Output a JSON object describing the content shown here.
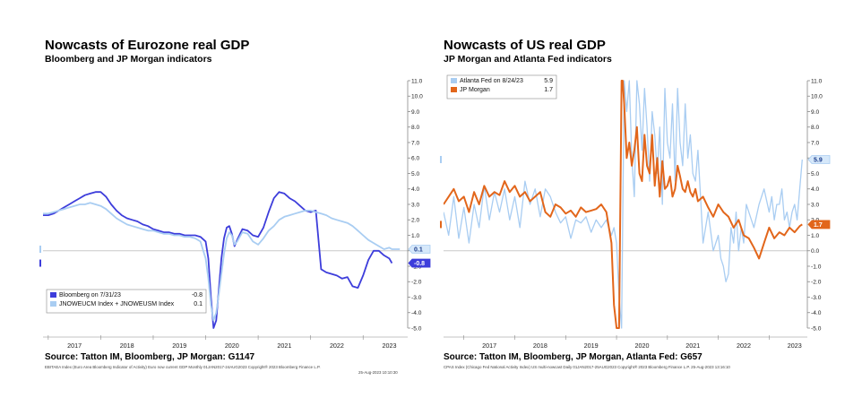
{
  "colors": {
    "eu_series_1": "#3d3ddb",
    "eu_series_2": "#a9cdf2",
    "us_series_1": "#a9cdf2",
    "us_series_2": "#e2661b",
    "axis": "#888888",
    "zero_line": "#c8c8c8"
  },
  "chart_data": [
    {
      "type": "line",
      "title": "Nowcasts of Eurozone real GDP",
      "subtitle": "Bloomberg and JP Morgan indicators",
      "source": "Source: Tatton IM, Bloomberg, JP Morgan: G1147",
      "footnote_1": "EBITAEA Index (Euro Area Bloomberg Indicator of Activity) Euro now current GDP  Monthly 01JAN2017-24AUG2023  Copyright® 2023 Bloomberg Finance L.P.",
      "footnote_2": "25-Aug-2023 10:10:30",
      "ylim": [
        -5.0,
        11.0
      ],
      "yticks": [
        "11.0",
        "10.0",
        "9.0",
        "8.0",
        "7.0",
        "6.0",
        "5.0",
        "4.0",
        "3.0",
        "2.0",
        "1.0",
        "0.0",
        "-1.0",
        "-2.0",
        "-3.0",
        "-4.0",
        "-5.0"
      ],
      "xticks": [
        "2017",
        "2018",
        "2019",
        "2020",
        "2021",
        "2022",
        "2023"
      ],
      "xlim": [
        2016.9,
        2023.85
      ],
      "legend": {
        "position": "bottom-left"
      },
      "series": [
        {
          "name": "Bloomberg on 7/31/23",
          "legend_value": "-0.8",
          "last_value_tag": "-0.8",
          "color": "#3d3ddb",
          "x": [
            2016.9,
            2017.0,
            2017.1,
            2017.2,
            2017.3,
            2017.4,
            2017.5,
            2017.6,
            2017.7,
            2017.8,
            2017.9,
            2018.0,
            2018.1,
            2018.2,
            2018.3,
            2018.4,
            2018.5,
            2018.6,
            2018.7,
            2018.8,
            2018.9,
            2019.0,
            2019.1,
            2019.2,
            2019.3,
            2019.4,
            2019.5,
            2019.6,
            2019.7,
            2019.8,
            2019.9,
            2020.0,
            2020.05,
            2020.1,
            2020.15,
            2020.2,
            2020.25,
            2020.3,
            2020.35,
            2020.4,
            2020.45,
            2020.5,
            2020.55,
            2020.6,
            2020.7,
            2020.8,
            2020.9,
            2021.0,
            2021.1,
            2021.2,
            2021.3,
            2021.4,
            2021.5,
            2021.6,
            2021.7,
            2021.8,
            2021.9,
            2022.0,
            2022.1,
            2022.2,
            2022.3,
            2022.4,
            2022.5,
            2022.6,
            2022.7,
            2022.8,
            2022.9,
            2023.0,
            2023.1,
            2023.2,
            2023.3,
            2023.4,
            2023.5,
            2023.55
          ],
          "y": [
            2.3,
            2.3,
            2.4,
            2.6,
            2.8,
            3.0,
            3.2,
            3.4,
            3.6,
            3.7,
            3.8,
            3.8,
            3.5,
            3.0,
            2.6,
            2.3,
            2.1,
            2.0,
            1.9,
            1.7,
            1.6,
            1.4,
            1.3,
            1.2,
            1.2,
            1.1,
            1.1,
            1.0,
            1.0,
            1.0,
            0.9,
            0.6,
            -0.5,
            -3.0,
            -5.0,
            -4.5,
            -2.5,
            -0.5,
            0.8,
            1.5,
            1.6,
            1.1,
            0.3,
            0.7,
            1.4,
            1.3,
            1.0,
            0.9,
            1.5,
            2.5,
            3.4,
            3.8,
            3.7,
            3.4,
            3.2,
            2.9,
            2.6,
            2.5,
            2.6,
            -1.2,
            -1.4,
            -1.5,
            -1.6,
            -1.8,
            -1.7,
            -2.3,
            -2.4,
            -1.6,
            -0.6,
            0.0,
            0.0,
            -0.3,
            -0.5,
            -0.8
          ]
        },
        {
          "name": "JNOWEUCM Index + JNOWEUSM Index",
          "legend_value": "0.1",
          "last_value_tag": "0.1",
          "color": "#a9cdf2",
          "x": [
            2016.9,
            2017.0,
            2017.1,
            2017.2,
            2017.3,
            2017.4,
            2017.5,
            2017.6,
            2017.7,
            2017.8,
            2017.9,
            2018.0,
            2018.1,
            2018.2,
            2018.3,
            2018.4,
            2018.5,
            2018.6,
            2018.7,
            2018.8,
            2018.9,
            2019.0,
            2019.1,
            2019.2,
            2019.3,
            2019.4,
            2019.5,
            2019.6,
            2019.7,
            2019.8,
            2019.9,
            2020.0,
            2020.05,
            2020.1,
            2020.15,
            2020.2,
            2020.25,
            2020.3,
            2020.35,
            2020.4,
            2020.45,
            2020.5,
            2020.55,
            2020.6,
            2020.7,
            2020.8,
            2020.9,
            2021.0,
            2021.1,
            2021.2,
            2021.3,
            2021.4,
            2021.5,
            2021.6,
            2021.7,
            2021.8,
            2021.9,
            2022.0,
            2022.1,
            2022.2,
            2022.3,
            2022.4,
            2022.5,
            2022.6,
            2022.7,
            2022.8,
            2022.9,
            2023.0,
            2023.1,
            2023.2,
            2023.3,
            2023.4,
            2023.5,
            2023.55,
            2023.6,
            2023.7
          ],
          "y": [
            2.4,
            2.4,
            2.5,
            2.6,
            2.7,
            2.8,
            2.9,
            3.0,
            3.0,
            3.1,
            3.0,
            2.9,
            2.7,
            2.4,
            2.1,
            1.9,
            1.7,
            1.6,
            1.5,
            1.4,
            1.3,
            1.3,
            1.2,
            1.1,
            1.1,
            1.0,
            1.0,
            0.9,
            0.9,
            0.8,
            0.6,
            -0.5,
            -1.8,
            -3.5,
            -4.5,
            -4.0,
            -2.8,
            -1.5,
            -0.2,
            0.8,
            1.2,
            1.0,
            0.4,
            0.6,
            1.2,
            1.1,
            0.6,
            0.4,
            0.8,
            1.3,
            1.6,
            2.0,
            2.2,
            2.3,
            2.4,
            2.5,
            2.6,
            2.6,
            2.5,
            2.4,
            2.3,
            2.1,
            2.0,
            1.9,
            1.8,
            1.6,
            1.3,
            1.0,
            0.7,
            0.5,
            0.3,
            0.1,
            0.2,
            0.1,
            0.1,
            0.1
          ]
        }
      ]
    },
    {
      "type": "line",
      "title": "Nowcasts of US real GDP",
      "subtitle": "JP Morgan and Atlanta Fed indicators",
      "source": "Source: Tatton IM, Bloomberg, JP Morgan, Atlanta Fed: G657",
      "footnote_1": "CPAS Index (Chicago Fed National Activity Index) US multi-nowcast  Daily 01JAN2017-25AUG2023  Copyright® 2023 Bloomberg Finance L.P.  25-Aug-2023 13:16:10",
      "ylim": [
        -5.0,
        11.0
      ],
      "yticks": [
        "11.0",
        "10.0",
        "9.0",
        "8.0",
        "7.0",
        "6.0",
        "5.0",
        "4.0",
        "3.0",
        "2.0",
        "1.0",
        "0.0",
        "-1.0",
        "-2.0",
        "-3.0",
        "-4.0",
        "-5.0"
      ],
      "xticks": [
        "2017",
        "2018",
        "2019",
        "2020",
        "2021",
        "2022",
        "2023"
      ],
      "xlim": [
        2016.6,
        2023.75
      ],
      "legend": {
        "position": "top-left"
      },
      "series": [
        {
          "name": "Atlanta Fed on 8/24/23",
          "legend_value": "5.9",
          "last_value_tag": "5.9",
          "color": "#a9cdf2",
          "x": [
            2016.6,
            2016.7,
            2016.8,
            2016.9,
            2017.0,
            2017.1,
            2017.2,
            2017.3,
            2017.4,
            2017.5,
            2017.6,
            2017.7,
            2017.8,
            2017.9,
            2018.0,
            2018.1,
            2018.2,
            2018.3,
            2018.4,
            2018.5,
            2018.6,
            2018.7,
            2018.8,
            2018.9,
            2019.0,
            2019.1,
            2019.2,
            2019.3,
            2019.4,
            2019.5,
            2019.6,
            2019.7,
            2019.8,
            2019.9,
            2019.95,
            2020.0,
            2020.05,
            2020.1,
            2020.15,
            2020.2,
            2020.25,
            2020.3,
            2020.35,
            2020.4,
            2020.45,
            2020.5,
            2020.55,
            2020.6,
            2020.65,
            2020.7,
            2020.75,
            2020.8,
            2020.85,
            2020.9,
            2020.95,
            2021.0,
            2021.05,
            2021.1,
            2021.15,
            2021.2,
            2021.25,
            2021.3,
            2021.35,
            2021.4,
            2021.45,
            2021.5,
            2021.55,
            2021.6,
            2021.65,
            2021.7,
            2021.8,
            2021.9,
            2022.0,
            2022.05,
            2022.1,
            2022.15,
            2022.2,
            2022.25,
            2022.3,
            2022.35,
            2022.4,
            2022.45,
            2022.5,
            2022.55,
            2022.6,
            2022.7,
            2022.8,
            2022.9,
            2023.0,
            2023.05,
            2023.1,
            2023.15,
            2023.2,
            2023.25,
            2023.3,
            2023.35,
            2023.4,
            2023.45,
            2023.5,
            2023.55,
            2023.6,
            2023.65
          ],
          "y": [
            2.5,
            1.0,
            3.5,
            0.8,
            2.8,
            0.5,
            3.0,
            1.5,
            4.2,
            2.0,
            3.8,
            2.5,
            4.0,
            2.0,
            3.5,
            1.5,
            4.5,
            3.0,
            4.0,
            2.2,
            4.0,
            3.5,
            2.5,
            1.8,
            2.2,
            0.8,
            2.0,
            1.8,
            2.2,
            1.2,
            2.0,
            1.5,
            2.0,
            1.0,
            1.5,
            0.5,
            -3.0,
            -5.0,
            11.0,
            9.0,
            11.0,
            6.0,
            3.5,
            11.0,
            9.5,
            6.5,
            10.5,
            8.0,
            4.5,
            9.0,
            7.5,
            5.0,
            8.0,
            3.0,
            10.5,
            7.0,
            6.0,
            9.5,
            4.5,
            10.5,
            7.0,
            5.5,
            9.5,
            6.0,
            7.5,
            5.0,
            4.5,
            6.5,
            3.5,
            0.5,
            2.5,
            0.0,
            1.0,
            -0.5,
            -1.0,
            -2.0,
            -1.5,
            1.5,
            0.5,
            2.5,
            0.0,
            1.5,
            0.5,
            3.0,
            2.5,
            1.5,
            3.0,
            4.0,
            2.5,
            3.5,
            2.0,
            3.0,
            3.0,
            4.0,
            2.0,
            2.5,
            1.5,
            2.5,
            3.0,
            2.0,
            4.0,
            5.9
          ]
        },
        {
          "name": "JP Morgan",
          "legend_value": "1.7",
          "last_value_tag": "1.7",
          "color": "#e2661b",
          "x": [
            2016.6,
            2016.7,
            2016.8,
            2016.9,
            2017.0,
            2017.1,
            2017.2,
            2017.3,
            2017.4,
            2017.5,
            2017.6,
            2017.7,
            2017.8,
            2017.9,
            2018.0,
            2018.1,
            2018.2,
            2018.3,
            2018.4,
            2018.5,
            2018.6,
            2018.7,
            2018.8,
            2018.9,
            2019.0,
            2019.1,
            2019.2,
            2019.3,
            2019.4,
            2019.5,
            2019.6,
            2019.7,
            2019.8,
            2019.9,
            2019.95,
            2020.0,
            2020.05,
            2020.1,
            2020.12,
            2020.15,
            2020.2,
            2020.25,
            2020.3,
            2020.35,
            2020.4,
            2020.45,
            2020.5,
            2020.55,
            2020.6,
            2020.65,
            2020.7,
            2020.75,
            2020.8,
            2020.85,
            2020.9,
            2020.95,
            2021.0,
            2021.05,
            2021.1,
            2021.15,
            2021.2,
            2021.25,
            2021.3,
            2021.35,
            2021.4,
            2021.45,
            2021.5,
            2021.55,
            2021.6,
            2021.7,
            2021.8,
            2021.9,
            2022.0,
            2022.1,
            2022.2,
            2022.3,
            2022.4,
            2022.5,
            2022.6,
            2022.7,
            2022.8,
            2022.9,
            2023.0,
            2023.1,
            2023.2,
            2023.3,
            2023.4,
            2023.5,
            2023.6,
            2023.65
          ],
          "y": [
            3.0,
            3.5,
            4.0,
            3.2,
            3.5,
            2.5,
            3.8,
            3.0,
            4.2,
            3.5,
            3.8,
            3.6,
            4.5,
            3.8,
            4.2,
            3.5,
            3.8,
            3.2,
            3.5,
            3.8,
            2.5,
            2.2,
            3.0,
            2.8,
            2.4,
            2.6,
            2.2,
            2.8,
            2.5,
            2.6,
            2.7,
            3.0,
            2.5,
            0.5,
            -3.5,
            -5.0,
            -5.0,
            11.0,
            11.0,
            9.5,
            6.0,
            7.0,
            5.5,
            6.5,
            8.0,
            5.0,
            4.5,
            7.5,
            5.5,
            5.0,
            7.5,
            4.2,
            6.0,
            3.5,
            5.8,
            4.0,
            4.2,
            4.8,
            3.5,
            4.0,
            5.5,
            4.8,
            4.0,
            3.8,
            4.5,
            3.8,
            3.5,
            4.0,
            3.2,
            3.5,
            2.8,
            2.2,
            3.0,
            2.5,
            2.2,
            1.5,
            2.0,
            1.0,
            0.8,
            0.2,
            -0.5,
            0.5,
            1.5,
            0.8,
            1.2,
            1.0,
            1.5,
            1.2,
            1.6,
            1.7
          ]
        }
      ]
    }
  ]
}
